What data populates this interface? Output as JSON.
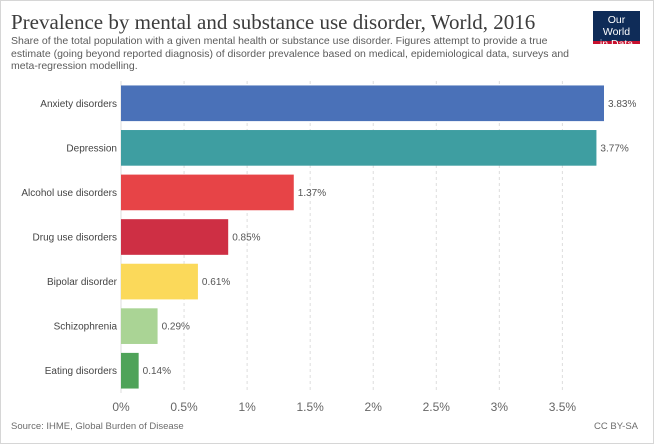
{
  "header": {
    "title": "Prevalence by mental and substance use disorder, World, 2016",
    "subtitle": "Share of the total population with a given mental health or substance use disorder. Figures attempt to provide a true estimate (going beyond reported diagnosis) of disorder prevalence based on medical, epidemiological data, surveys and meta-regression modelling.",
    "logo_line1": "Our World",
    "logo_line2": "in Data"
  },
  "footer": {
    "source": "Source: IHME, Global Burden of Disease",
    "license": "CC BY-SA"
  },
  "colors": {
    "logo_bg": "#0f2c58",
    "logo_accent": "#c8102e",
    "grid": "#dddddd"
  },
  "chart_data": {
    "type": "bar",
    "orientation": "horizontal",
    "title": "Prevalence by mental and substance use disorder, World, 2016",
    "categories": [
      "Anxiety disorders",
      "Depression",
      "Alcohol use disorders",
      "Drug use disorders",
      "Bipolar disorder",
      "Schizophrenia",
      "Eating disorders"
    ],
    "values": [
      3.83,
      3.77,
      1.37,
      0.85,
      0.61,
      0.29,
      0.14
    ],
    "value_labels": [
      "3.83%",
      "3.77%",
      "1.37%",
      "0.85%",
      "0.61%",
      "0.29%",
      "0.14%"
    ],
    "colors": [
      "#4a71b8",
      "#3e9ea1",
      "#e74447",
      "#ce2f44",
      "#fbd95a",
      "#aad495",
      "#4fa359"
    ],
    "xlim": [
      0,
      3.83
    ],
    "ticks": [
      0,
      0.5,
      1,
      1.5,
      2,
      2.5,
      3,
      3.5
    ],
    "tick_labels": [
      "0%",
      "0.5%",
      "1%",
      "1.5%",
      "2%",
      "2.5%",
      "3%",
      "3.5%"
    ],
    "grid": true,
    "grid_style": "dashed",
    "legend": "none",
    "xlabel": "",
    "ylabel": ""
  }
}
